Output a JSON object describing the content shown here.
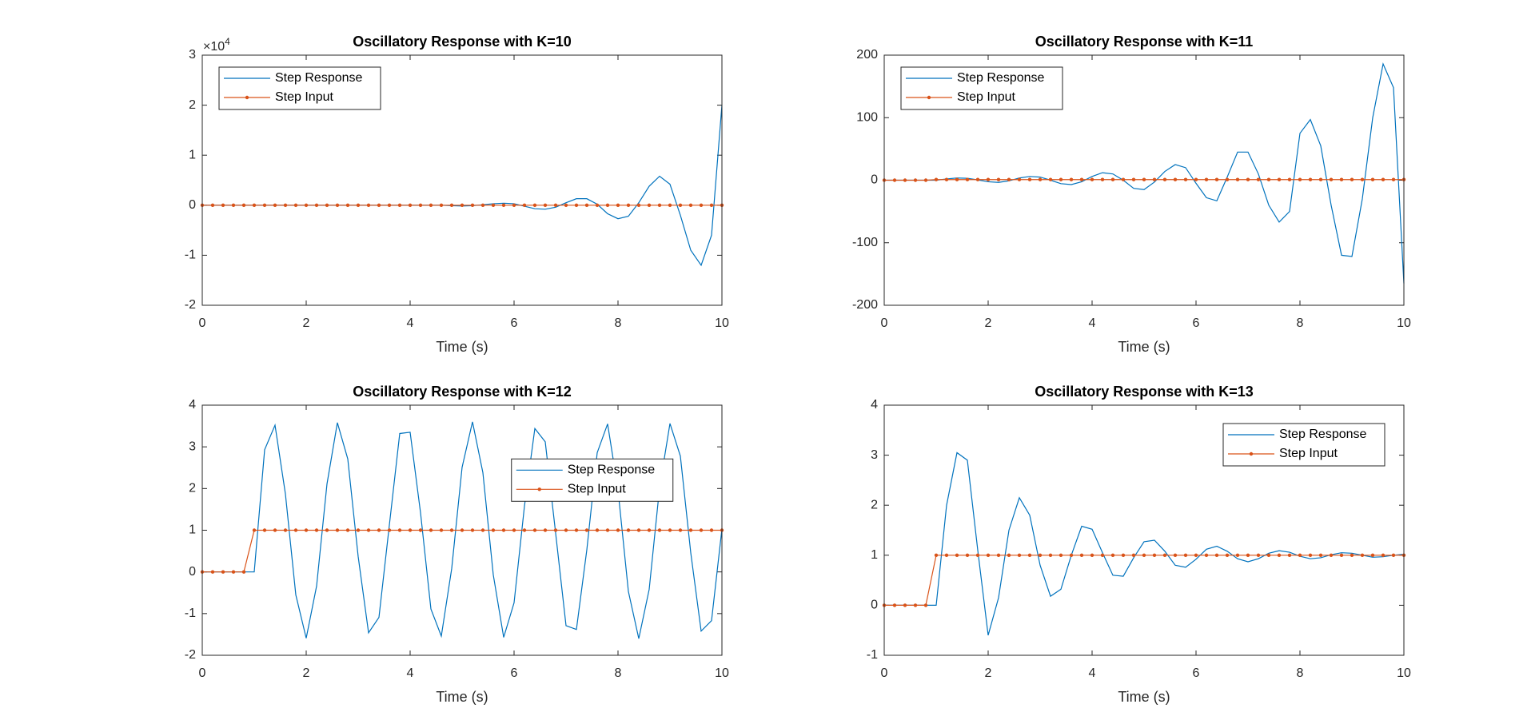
{
  "chart_data": [
    {
      "type": "line",
      "title": "Oscillatory Response with K=10",
      "xlabel": "Time (s)",
      "y_multiplier": {
        "base": "×10",
        "exponent": "4"
      },
      "x": [
        0,
        0.2,
        0.4,
        0.6,
        0.8,
        1,
        1.2,
        1.4,
        1.6,
        1.8,
        2,
        2.2,
        2.4,
        2.6,
        2.8,
        3,
        3.2,
        3.4,
        3.6,
        3.8,
        4,
        4.2,
        4.4,
        4.6,
        4.8,
        5,
        5.2,
        5.4,
        5.6,
        5.8,
        6,
        6.2,
        6.4,
        6.6,
        6.8,
        7,
        7.2,
        7.4,
        7.6,
        7.8,
        8,
        8.2,
        8.4,
        8.6,
        8.8,
        9,
        9.2,
        9.4,
        9.6,
        9.8,
        10
      ],
      "series": [
        {
          "name": "Step Response",
          "color": "#0072BD",
          "values": [
            0,
            0,
            0,
            0,
            0,
            0,
            0,
            0,
            0,
            0,
            0,
            0,
            0,
            0,
            0,
            0,
            0,
            0,
            0,
            0,
            0,
            0,
            0,
            0,
            -0.01,
            -0.015,
            -0.01,
            0.01,
            0.03,
            0.04,
            0.03,
            -0.02,
            -0.07,
            -0.08,
            -0.04,
            0.05,
            0.13,
            0.13,
            0.02,
            -0.17,
            -0.27,
            -0.22,
            0.05,
            0.38,
            0.58,
            0.42,
            -0.2,
            -0.9,
            -1.2,
            -0.6,
            2.0
          ]
        },
        {
          "name": "Step Input",
          "color": "#D95319",
          "marker": "dot",
          "values": [
            0,
            0,
            0,
            0,
            0,
            0.0001,
            0.0001,
            0.0001,
            0.0001,
            0.0001,
            0.0001,
            0.0001,
            0.0001,
            0.0001,
            0.0001,
            0.0001,
            0.0001,
            0.0001,
            0.0001,
            0.0001,
            0.0001,
            0.0001,
            0.0001,
            0.0001,
            0.0001,
            0.0001,
            0.0001,
            0.0001,
            0.0001,
            0.0001,
            0.0001,
            0.0001,
            0.0001,
            0.0001,
            0.0001,
            0.0001,
            0.0001,
            0.0001,
            0.0001,
            0.0001,
            0.0001,
            0.0001,
            0.0001,
            0.0001,
            0.0001,
            0.0001,
            0.0001,
            0.0001,
            0.0001,
            0.0001,
            0.0001
          ]
        }
      ],
      "xlim": [
        0,
        10
      ],
      "xticks": [
        0,
        2,
        4,
        6,
        8,
        10
      ],
      "ylim": [
        -2,
        3
      ],
      "yticks": [
        -2,
        -1,
        0,
        1,
        2,
        3
      ],
      "legend": "northwest"
    },
    {
      "type": "line",
      "title": "Oscillatory Response with K=11",
      "xlabel": "Time (s)",
      "x": [
        0,
        0.2,
        0.4,
        0.6,
        0.8,
        1,
        1.2,
        1.4,
        1.6,
        1.8,
        2,
        2.2,
        2.4,
        2.6,
        2.8,
        3,
        3.2,
        3.4,
        3.6,
        3.8,
        4,
        4.2,
        4.4,
        4.6,
        4.8,
        5,
        5.2,
        5.4,
        5.6,
        5.8,
        6,
        6.2,
        6.4,
        6.6,
        6.8,
        7,
        7.2,
        7.4,
        7.6,
        7.8,
        8,
        8.2,
        8.4,
        8.6,
        8.8,
        9,
        9.2,
        9.4,
        9.6,
        9.8,
        10
      ],
      "series": [
        {
          "name": "Step Response",
          "color": "#0072BD",
          "values": [
            0,
            0,
            0,
            0,
            0,
            0,
            2,
            3.5,
            3,
            0.5,
            -2.5,
            -3.5,
            -1,
            3.5,
            6,
            5,
            0,
            -5.5,
            -7,
            -2.5,
            6,
            12,
            10,
            0,
            -13,
            -15,
            -3,
            14,
            25,
            20,
            -5,
            -28,
            -33,
            5,
            45,
            45,
            10,
            -40,
            -67,
            -50,
            75,
            97,
            55,
            -40,
            -120,
            -122,
            -30,
            100,
            186,
            148,
            -165
          ]
        },
        {
          "name": "Step Input",
          "color": "#D95319",
          "marker": "dot",
          "values": [
            0,
            0,
            0,
            0,
            0,
            1,
            1,
            1,
            1,
            1,
            1,
            1,
            1,
            1,
            1,
            1,
            1,
            1,
            1,
            1,
            1,
            1,
            1,
            1,
            1,
            1,
            1,
            1,
            1,
            1,
            1,
            1,
            1,
            1,
            1,
            1,
            1,
            1,
            1,
            1,
            1,
            1,
            1,
            1,
            1,
            1,
            1,
            1,
            1,
            1,
            1
          ]
        }
      ],
      "xlim": [
        0,
        10
      ],
      "xticks": [
        0,
        2,
        4,
        6,
        8,
        10
      ],
      "ylim": [
        -200,
        200
      ],
      "yticks": [
        -200,
        -100,
        0,
        100,
        200
      ],
      "legend": "northwest"
    },
    {
      "type": "line",
      "title": "Oscillatory Response with K=12",
      "xlabel": "Time (s)",
      "x": [
        0,
        0.2,
        0.4,
        0.6,
        0.8,
        1,
        1.2,
        1.4,
        1.6,
        1.8,
        2,
        2.2,
        2.4,
        2.6,
        2.8,
        3,
        3.2,
        3.4,
        3.6,
        3.8,
        4,
        4.2,
        4.4,
        4.6,
        4.8,
        5,
        5.2,
        5.4,
        5.6,
        5.8,
        6,
        6.2,
        6.4,
        6.6,
        6.8,
        7,
        7.2,
        7.4,
        7.6,
        7.8,
        8,
        8.2,
        8.4,
        8.6,
        8.8,
        9,
        9.2,
        9.4,
        9.6,
        9.8,
        10
      ],
      "series": [
        {
          "name": "Step Response",
          "color": "#0072BD",
          "values": [
            0,
            0,
            0,
            0,
            0,
            0,
            2.93,
            3.52,
            1.87,
            -0.55,
            -1.59,
            -0.34,
            2.11,
            3.58,
            2.71,
            0.37,
            -1.46,
            -1.09,
            1.12,
            3.32,
            3.35,
            1.42,
            -0.89,
            -1.54,
            0.08,
            2.51,
            3.6,
            2.38,
            -0.07,
            -1.57,
            -0.74,
            1.58,
            3.44,
            3.12,
            0.93,
            -1.29,
            -1.38,
            0.53,
            2.86,
            3.55,
            1.97,
            -0.47,
            -1.6,
            -0.42,
            2.02,
            3.56,
            2.78,
            0.46,
            -1.42,
            -1.17,
            1.03
          ]
        },
        {
          "name": "Step Input",
          "color": "#D95319",
          "marker": "dot",
          "values": [
            0,
            0,
            0,
            0,
            0,
            1,
            1,
            1,
            1,
            1,
            1,
            1,
            1,
            1,
            1,
            1,
            1,
            1,
            1,
            1,
            1,
            1,
            1,
            1,
            1,
            1,
            1,
            1,
            1,
            1,
            1,
            1,
            1,
            1,
            1,
            1,
            1,
            1,
            1,
            1,
            1,
            1,
            1,
            1,
            1,
            1,
            1,
            1,
            1,
            1,
            1
          ]
        }
      ],
      "xlim": [
        0,
        10
      ],
      "xticks": [
        0,
        2,
        4,
        6,
        8,
        10
      ],
      "ylim": [
        -2,
        4
      ],
      "yticks": [
        -2,
        -1,
        0,
        1,
        2,
        3,
        4
      ],
      "legend": "center-right"
    },
    {
      "type": "line",
      "title": "Oscillatory Response with K=13",
      "xlabel": "Time (s)",
      "x": [
        0,
        0.2,
        0.4,
        0.6,
        0.8,
        1,
        1.2,
        1.4,
        1.6,
        1.8,
        2,
        2.2,
        2.4,
        2.6,
        2.8,
        3,
        3.2,
        3.4,
        3.6,
        3.8,
        4,
        4.2,
        4.4,
        4.6,
        4.8,
        5,
        5.2,
        5.4,
        5.6,
        5.8,
        6,
        6.2,
        6.4,
        6.6,
        6.8,
        7,
        7.2,
        7.4,
        7.6,
        7.8,
        8,
        8.2,
        8.4,
        8.6,
        8.8,
        9,
        9.2,
        9.4,
        9.6,
        9.8,
        10
      ],
      "series": [
        {
          "name": "Step Response",
          "color": "#0072BD",
          "values": [
            0,
            0,
            0,
            0,
            0,
            0,
            2.0,
            3.05,
            2.9,
            1.1,
            -0.6,
            0.15,
            1.5,
            2.15,
            1.8,
            0.8,
            0.18,
            0.32,
            1.0,
            1.58,
            1.52,
            1.05,
            0.6,
            0.58,
            0.95,
            1.27,
            1.3,
            1.08,
            0.8,
            0.76,
            0.92,
            1.12,
            1.18,
            1.08,
            0.93,
            0.87,
            0.93,
            1.04,
            1.09,
            1.06,
            0.98,
            0.93,
            0.95,
            1.01,
            1.05,
            1.04,
            1.0,
            0.96,
            0.97,
            1.0,
            1.02
          ]
        },
        {
          "name": "Step Input",
          "color": "#D95319",
          "marker": "dot",
          "values": [
            0,
            0,
            0,
            0,
            0,
            1,
            1,
            1,
            1,
            1,
            1,
            1,
            1,
            1,
            1,
            1,
            1,
            1,
            1,
            1,
            1,
            1,
            1,
            1,
            1,
            1,
            1,
            1,
            1,
            1,
            1,
            1,
            1,
            1,
            1,
            1,
            1,
            1,
            1,
            1,
            1,
            1,
            1,
            1,
            1,
            1,
            1,
            1,
            1,
            1,
            1
          ]
        }
      ],
      "xlim": [
        0,
        10
      ],
      "xticks": [
        0,
        2,
        4,
        6,
        8,
        10
      ],
      "ylim": [
        -1,
        4
      ],
      "yticks": [
        -1,
        0,
        1,
        2,
        3,
        4
      ],
      "legend": "northeast"
    }
  ]
}
